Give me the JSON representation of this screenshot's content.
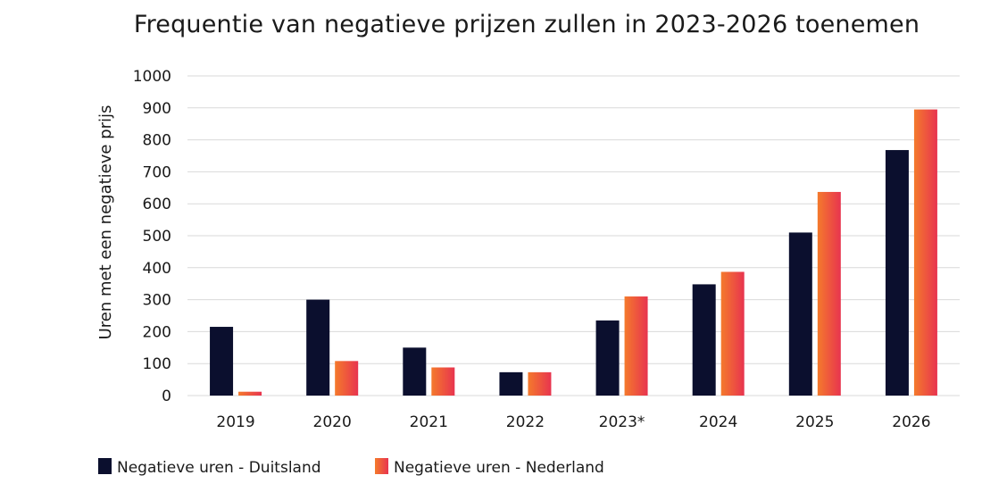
{
  "chart_data": {
    "type": "bar",
    "title": "Frequentie van negatieve prijzen zullen in 2023-2026 toenemen",
    "xlabel": "",
    "ylabel": "Uren met een negatieve prijs",
    "ylim": [
      0,
      1000
    ],
    "yticks": [
      0,
      100,
      200,
      300,
      400,
      500,
      600,
      700,
      800,
      900,
      1000
    ],
    "categories": [
      "2019",
      "2020",
      "2021",
      "2022",
      "2023*",
      "2024",
      "2025",
      "2026"
    ],
    "series": [
      {
        "name": "Negatieve uren - Duitsland",
        "color": "#0b0f2e",
        "values": [
          215,
          300,
          150,
          73,
          235,
          348,
          510,
          768
        ]
      },
      {
        "name": "Negatieve uren - Nederland",
        "color": "#e8344f",
        "color_end": "#f47a2c",
        "values": [
          12,
          108,
          88,
          73,
          310,
          387,
          637,
          895
        ]
      }
    ],
    "grid": true,
    "legend_position": "bottom-left"
  }
}
